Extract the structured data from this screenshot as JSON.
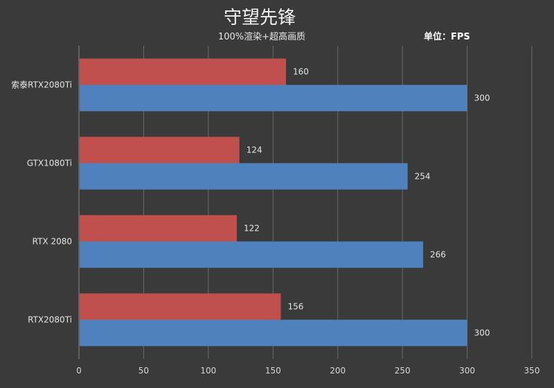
{
  "chart_data": {
    "type": "bar",
    "orientation": "horizontal",
    "title": "守望先锋",
    "subtitle": "100%渲染+超高画质",
    "unit_label": "单位：FPS",
    "categories": [
      "索泰RTX2080Ti",
      "GTX1080Ti",
      "RTX 2080",
      "RTX2080Ti"
    ],
    "series": [
      {
        "color": "#c0504d",
        "values": [
          160,
          124,
          122,
          156
        ]
      },
      {
        "color": "#4f81bd",
        "values": [
          300,
          254,
          266,
          300
        ]
      }
    ],
    "xlim": [
      0,
      350
    ],
    "xticks": [
      0,
      50,
      100,
      150,
      200,
      250,
      300,
      350
    ],
    "grid": true,
    "legend": "none"
  }
}
